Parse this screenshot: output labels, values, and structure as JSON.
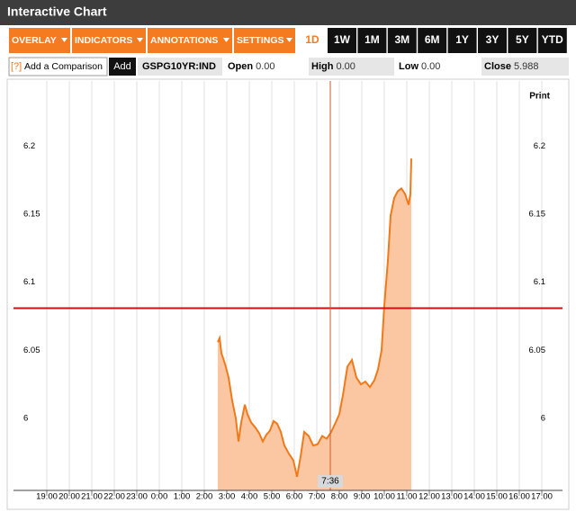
{
  "ui": {
    "title": "Interactive Chart",
    "menus": [
      "OVERLAY",
      "INDICATORS",
      "ANNOTATIONS",
      "SETTINGS"
    ],
    "periods": [
      "1D",
      "1W",
      "1M",
      "3M",
      "6M",
      "1Y",
      "3Y",
      "5Y",
      "YTD"
    ],
    "help": "[?]",
    "comparison": "Add a Comparison",
    "add": "Add",
    "quotes": [
      {
        "label": "Open",
        "value": "0.00"
      },
      {
        "label": "High",
        "value": "0.00"
      },
      {
        "label": "Low",
        "value": "0.00"
      },
      {
        "label": "Close",
        "value": "5.988"
      }
    ],
    "print": "Print"
  },
  "chart_data": {
    "type": "area",
    "x": [
      2.6,
      2.68,
      2.76,
      2.92,
      3.08,
      3.24,
      3.4,
      3.52,
      3.64,
      3.8,
      3.92,
      4.08,
      4.28,
      4.44,
      4.6,
      4.76,
      4.92,
      5.08,
      5.24,
      5.4,
      5.56,
      5.76,
      5.96,
      6.12,
      6.28,
      6.44,
      6.64,
      6.84,
      7.04,
      7.24,
      7.44,
      7.64,
      7.84,
      8.0,
      8.16,
      8.36,
      8.56,
      8.76,
      8.96,
      9.16,
      9.36,
      9.56,
      9.72,
      9.88,
      10.0,
      10.16,
      10.28,
      10.44,
      10.6,
      10.76,
      10.92,
      11.08,
      11.16,
      11.2
    ],
    "series": [
      {
        "name": "GSPG10YR:IND",
        "color": "#f07a1a",
        "fill": "#fbc6a2",
        "values": [
          6.056,
          6.059,
          6.048,
          6.04,
          6.03,
          6.013,
          6.0,
          5.983,
          5.997,
          6.01,
          6.003,
          5.997,
          5.993,
          5.989,
          5.983,
          5.988,
          5.991,
          5.998,
          5.996,
          5.99,
          5.98,
          5.974,
          5.969,
          5.957,
          5.972,
          5.99,
          5.987,
          5.98,
          5.981,
          5.987,
          5.985,
          5.99,
          5.997,
          6.003,
          6.017,
          6.038,
          6.043,
          6.03,
          6.025,
          6.027,
          6.023,
          6.028,
          6.036,
          6.05,
          6.083,
          6.116,
          6.149,
          6.162,
          6.167,
          6.169,
          6.165,
          6.157,
          6.165,
          6.191
        ]
      }
    ],
    "xlim": [
      -6.48,
      17.92
    ],
    "xticks": [
      {
        "value": -5,
        "label": "19:00"
      },
      {
        "value": -4,
        "label": "20:00"
      },
      {
        "value": -3,
        "label": "21:00"
      },
      {
        "value": -2,
        "label": "22:00"
      },
      {
        "value": -1,
        "label": "23:00"
      },
      {
        "value": 0,
        "label": "0:00"
      },
      {
        "value": 1,
        "label": "1:00"
      },
      {
        "value": 2,
        "label": "2:00"
      },
      {
        "value": 3,
        "label": "3:00"
      },
      {
        "value": 4,
        "label": "4:00"
      },
      {
        "value": 5,
        "label": "5:00"
      },
      {
        "value": 6,
        "label": "6:00"
      },
      {
        "value": 7,
        "label": "7:00"
      },
      {
        "value": 8,
        "label": "8:00"
      },
      {
        "value": 9,
        "label": "9:00"
      },
      {
        "value": 10,
        "label": "10:00"
      },
      {
        "value": 11,
        "label": "11:00"
      },
      {
        "value": 12,
        "label": "12:00"
      },
      {
        "value": 13,
        "label": "13:00"
      },
      {
        "value": 14,
        "label": "14:00"
      },
      {
        "value": 15,
        "label": "15:00"
      },
      {
        "value": 16,
        "label": "16:00"
      },
      {
        "value": 17,
        "label": "17:00"
      }
    ],
    "ylim": [
      5.947,
      6.248
    ],
    "yticks": [
      6,
      6.05,
      6.1,
      6.15,
      6.2
    ],
    "grid": true,
    "reference_line": {
      "value": 6.081,
      "color": "#cc1111"
    },
    "crosshair": {
      "x": 7.6,
      "label": "7:36"
    }
  }
}
